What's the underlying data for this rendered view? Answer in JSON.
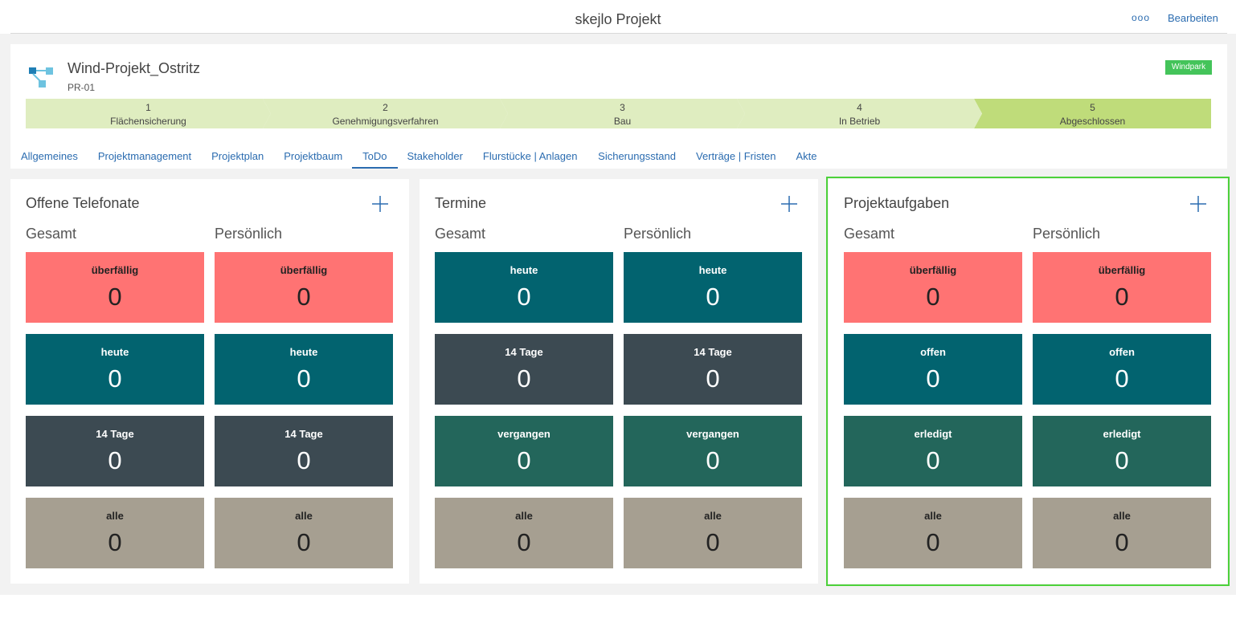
{
  "header": {
    "title": "skejlo Projekt",
    "more": "ooo",
    "edit": "Bearbeiten"
  },
  "project": {
    "name": "Wind-Projekt_Ostritz",
    "id": "PR-01",
    "tag": "Windpark"
  },
  "stages": [
    {
      "number": 1,
      "label": "Flächensicherung",
      "color": "#dfedc0"
    },
    {
      "number": 2,
      "label": "Genehmigungsverfahren",
      "color": "#dfedc0"
    },
    {
      "number": 3,
      "label": "Bau",
      "color": "#dfedc0"
    },
    {
      "number": 4,
      "label": "In Betrieb",
      "color": "#dfedc0"
    },
    {
      "number": 5,
      "label": "Abgeschlossen",
      "color": "#bfdc7a"
    }
  ],
  "tabs": [
    {
      "label": "Allgemeines"
    },
    {
      "label": "Projektmanagement"
    },
    {
      "label": "Projektplan"
    },
    {
      "label": "Projektbaum"
    },
    {
      "label": "ToDo",
      "active": true
    },
    {
      "label": "Stakeholder"
    },
    {
      "label": "Flurstücke | Anlagen"
    },
    {
      "label": "Sicherungsstand"
    },
    {
      "label": "Verträge | Fristen"
    },
    {
      "label": "Akte"
    }
  ],
  "panels": [
    {
      "title": "Offene Telefonate",
      "columns": [
        "Gesamt",
        "Persönlich"
      ],
      "tiles": [
        {
          "label": "überfällig",
          "color": "#ff7373",
          "text_color": "#222222",
          "values": [
            0,
            0
          ]
        },
        {
          "label": "heute",
          "color": "#02636f",
          "text_color": "#ffffff",
          "values": [
            0,
            0
          ]
        },
        {
          "label": "14 Tage",
          "color": "#3c4a52",
          "text_color": "#ffffff",
          "values": [
            0,
            0
          ]
        },
        {
          "label": "alle",
          "color": "#a69f91",
          "text_color": "#222222",
          "values": [
            0,
            0
          ]
        }
      ]
    },
    {
      "title": "Termine",
      "columns": [
        "Gesamt",
        "Persönlich"
      ],
      "tiles": [
        {
          "label": "heute",
          "color": "#02636f",
          "text_color": "#ffffff",
          "values": [
            0,
            0
          ]
        },
        {
          "label": "14 Tage",
          "color": "#3c4a52",
          "text_color": "#ffffff",
          "values": [
            0,
            0
          ]
        },
        {
          "label": "vergangen",
          "color": "#23665b",
          "text_color": "#ffffff",
          "values": [
            0,
            0
          ]
        },
        {
          "label": "alle",
          "color": "#a69f91",
          "text_color": "#222222",
          "values": [
            0,
            0
          ]
        }
      ]
    },
    {
      "title": "Projektaufgaben",
      "highlighted": true,
      "columns": [
        "Gesamt",
        "Persönlich"
      ],
      "tiles": [
        {
          "label": "überfällig",
          "color": "#ff7373",
          "text_color": "#222222",
          "values": [
            0,
            0
          ]
        },
        {
          "label": "offen",
          "color": "#02636f",
          "text_color": "#ffffff",
          "values": [
            0,
            0
          ]
        },
        {
          "label": "erledigt",
          "color": "#23665b",
          "text_color": "#ffffff",
          "values": [
            0,
            0
          ]
        },
        {
          "label": "alle",
          "color": "#a69f91",
          "text_color": "#222222",
          "values": [
            0,
            0
          ]
        }
      ]
    }
  ]
}
